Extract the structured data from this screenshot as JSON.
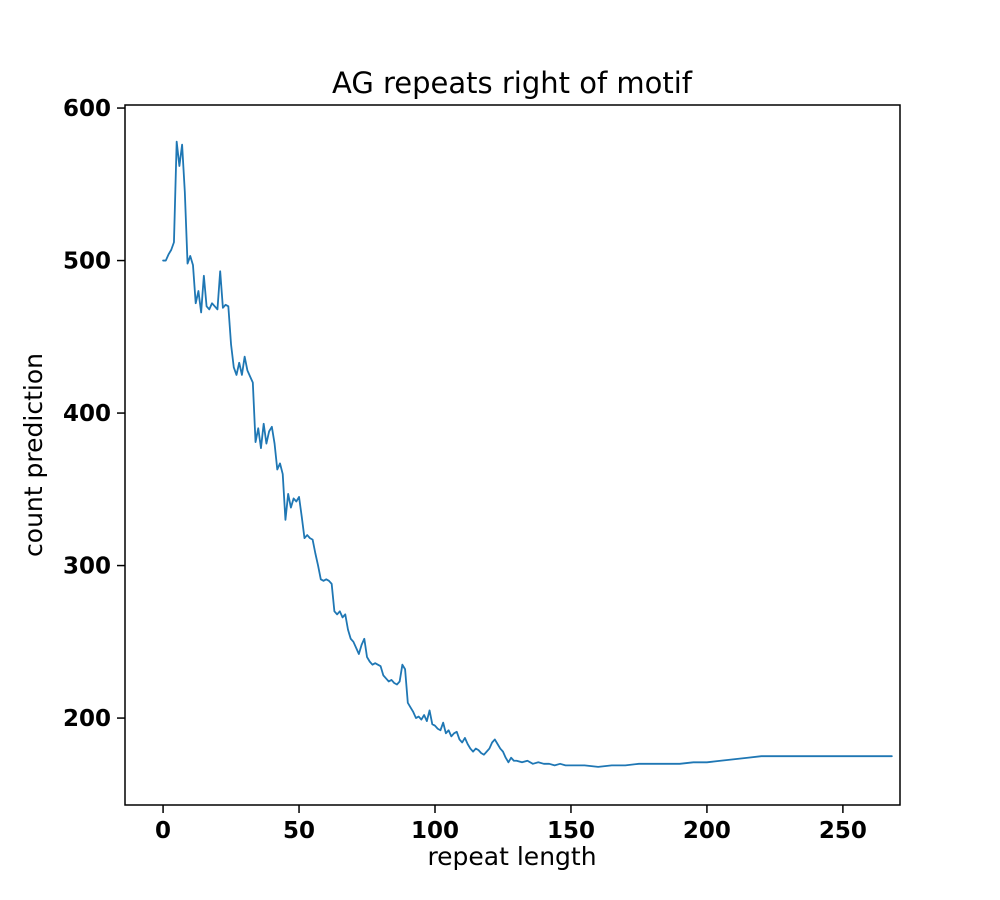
{
  "figure": {
    "background": "#ffffff"
  },
  "chart_data": {
    "type": "line",
    "title": "AG repeats right of motif",
    "xlabel": "repeat length",
    "ylabel": "count prediction",
    "legend": "none",
    "grid": false,
    "line_color": "#1f77b4",
    "xlim": [
      -14,
      271
    ],
    "ylim": [
      143,
      602
    ],
    "xticks": [
      0,
      50,
      100,
      150,
      200,
      250
    ],
    "yticks": [
      200,
      300,
      400,
      500,
      600
    ],
    "series": [
      {
        "name": "count prediction",
        "points": [
          [
            0,
            500
          ],
          [
            1,
            500
          ],
          [
            2,
            504
          ],
          [
            3,
            507
          ],
          [
            4,
            512
          ],
          [
            5,
            578
          ],
          [
            6,
            562
          ],
          [
            7,
            576
          ],
          [
            8,
            545
          ],
          [
            9,
            498
          ],
          [
            10,
            503
          ],
          [
            11,
            497
          ],
          [
            12,
            472
          ],
          [
            13,
            480
          ],
          [
            14,
            466
          ],
          [
            15,
            490
          ],
          [
            16,
            470
          ],
          [
            17,
            468
          ],
          [
            18,
            472
          ],
          [
            19,
            470
          ],
          [
            20,
            468
          ],
          [
            21,
            493
          ],
          [
            22,
            469
          ],
          [
            23,
            471
          ],
          [
            24,
            470
          ],
          [
            25,
            445
          ],
          [
            26,
            430
          ],
          [
            27,
            425
          ],
          [
            28,
            433
          ],
          [
            29,
            425
          ],
          [
            30,
            437
          ],
          [
            31,
            428
          ],
          [
            32,
            424
          ],
          [
            33,
            420
          ],
          [
            34,
            381
          ],
          [
            35,
            390
          ],
          [
            36,
            377
          ],
          [
            37,
            393
          ],
          [
            38,
            380
          ],
          [
            39,
            388
          ],
          [
            40,
            391
          ],
          [
            41,
            380
          ],
          [
            42,
            363
          ],
          [
            43,
            367
          ],
          [
            44,
            360
          ],
          [
            45,
            330
          ],
          [
            46,
            347
          ],
          [
            47,
            338
          ],
          [
            48,
            344
          ],
          [
            49,
            342
          ],
          [
            50,
            345
          ],
          [
            51,
            332
          ],
          [
            52,
            318
          ],
          [
            53,
            320
          ],
          [
            54,
            318
          ],
          [
            55,
            317
          ],
          [
            56,
            308
          ],
          [
            57,
            300
          ],
          [
            58,
            291
          ],
          [
            59,
            290
          ],
          [
            60,
            291
          ],
          [
            61,
            290
          ],
          [
            62,
            288
          ],
          [
            63,
            270
          ],
          [
            64,
            268
          ],
          [
            65,
            270
          ],
          [
            66,
            266
          ],
          [
            67,
            268
          ],
          [
            68,
            258
          ],
          [
            69,
            252
          ],
          [
            70,
            250
          ],
          [
            71,
            246
          ],
          [
            72,
            242
          ],
          [
            73,
            248
          ],
          [
            74,
            252
          ],
          [
            75,
            240
          ],
          [
            76,
            237
          ],
          [
            77,
            235
          ],
          [
            78,
            236
          ],
          [
            79,
            235
          ],
          [
            80,
            234
          ],
          [
            81,
            228
          ],
          [
            82,
            226
          ],
          [
            83,
            224
          ],
          [
            84,
            225
          ],
          [
            85,
            223
          ],
          [
            86,
            222
          ],
          [
            87,
            224
          ],
          [
            88,
            235
          ],
          [
            89,
            232
          ],
          [
            90,
            210
          ],
          [
            91,
            207
          ],
          [
            92,
            204
          ],
          [
            93,
            200
          ],
          [
            94,
            201
          ],
          [
            95,
            199
          ],
          [
            96,
            202
          ],
          [
            97,
            198
          ],
          [
            98,
            205
          ],
          [
            99,
            196
          ],
          [
            100,
            195
          ],
          [
            101,
            193
          ],
          [
            102,
            192
          ],
          [
            103,
            197
          ],
          [
            104,
            190
          ],
          [
            105,
            192
          ],
          [
            106,
            188
          ],
          [
            107,
            190
          ],
          [
            108,
            191
          ],
          [
            109,
            186
          ],
          [
            110,
            184
          ],
          [
            111,
            187
          ],
          [
            112,
            183
          ],
          [
            113,
            180
          ],
          [
            114,
            178
          ],
          [
            115,
            180
          ],
          [
            116,
            179
          ],
          [
            117,
            177
          ],
          [
            118,
            176
          ],
          [
            119,
            178
          ],
          [
            120,
            180
          ],
          [
            121,
            184
          ],
          [
            122,
            186
          ],
          [
            123,
            183
          ],
          [
            124,
            180
          ],
          [
            125,
            178
          ],
          [
            126,
            174
          ],
          [
            127,
            171
          ],
          [
            128,
            174
          ],
          [
            129,
            172
          ],
          [
            130,
            172
          ],
          [
            132,
            171
          ],
          [
            134,
            172
          ],
          [
            136,
            170
          ],
          [
            138,
            171
          ],
          [
            140,
            170
          ],
          [
            142,
            170
          ],
          [
            144,
            169
          ],
          [
            146,
            170
          ],
          [
            148,
            169
          ],
          [
            150,
            169
          ],
          [
            155,
            169
          ],
          [
            160,
            168
          ],
          [
            165,
            169
          ],
          [
            170,
            169
          ],
          [
            175,
            170
          ],
          [
            180,
            170
          ],
          [
            185,
            170
          ],
          [
            190,
            170
          ],
          [
            195,
            171
          ],
          [
            200,
            171
          ],
          [
            205,
            172
          ],
          [
            210,
            173
          ],
          [
            215,
            174
          ],
          [
            220,
            175
          ],
          [
            225,
            175
          ],
          [
            230,
            175
          ],
          [
            235,
            175
          ],
          [
            240,
            175
          ],
          [
            245,
            175
          ],
          [
            250,
            175
          ],
          [
            255,
            175
          ],
          [
            260,
            175
          ],
          [
            264,
            175
          ],
          [
            268,
            175
          ]
        ]
      }
    ]
  }
}
